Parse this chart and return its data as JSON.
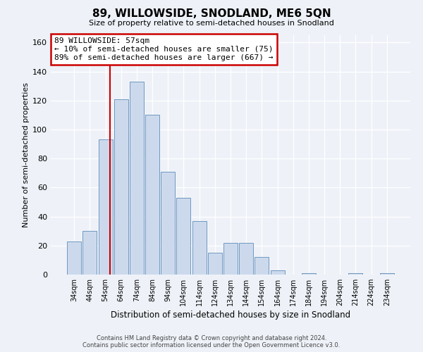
{
  "title": "89, WILLOWSIDE, SNODLAND, ME6 5QN",
  "subtitle": "Size of property relative to semi-detached houses in Snodland",
  "xlabel": "Distribution of semi-detached houses by size in Snodland",
  "ylabel": "Number of semi-detached properties",
  "bar_labels": [
    "34sqm",
    "44sqm",
    "54sqm",
    "64sqm",
    "74sqm",
    "84sqm",
    "94sqm",
    "104sqm",
    "114sqm",
    "124sqm",
    "134sqm",
    "144sqm",
    "154sqm",
    "164sqm",
    "174sqm",
    "184sqm",
    "194sqm",
    "204sqm",
    "214sqm",
    "224sqm",
    "234sqm"
  ],
  "bar_values": [
    23,
    30,
    93,
    121,
    133,
    110,
    71,
    53,
    37,
    15,
    22,
    22,
    12,
    3,
    0,
    1,
    0,
    0,
    1,
    0,
    1
  ],
  "bar_color": "#ccd9ed",
  "bar_edge_color": "#7098c0",
  "annotation_title": "89 WILLOWSIDE: 57sqm",
  "annotation_line1": "← 10% of semi-detached houses are smaller (75)",
  "annotation_line2": "89% of semi-detached houses are larger (667) →",
  "annotation_box_color": "#ffffff",
  "annotation_box_edge": "#cc0000",
  "vline_color": "#cc0000",
  "vline_x": 2.3,
  "ylim": [
    0,
    165
  ],
  "yticks": [
    0,
    20,
    40,
    60,
    80,
    100,
    120,
    140,
    160
  ],
  "footer_line1": "Contains HM Land Registry data © Crown copyright and database right 2024.",
  "footer_line2": "Contains public sector information licensed under the Open Government Licence v3.0.",
  "background_color": "#eef2f8",
  "grid_color": "#ffffff"
}
